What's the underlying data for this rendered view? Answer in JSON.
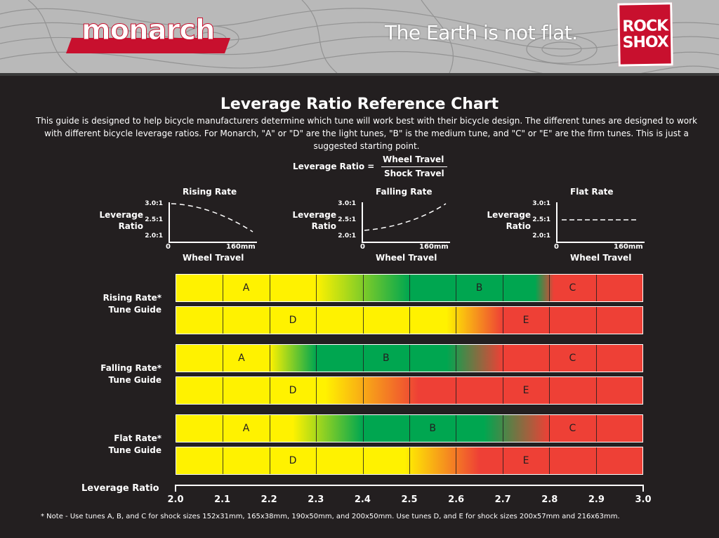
{
  "header": {
    "brand": "monarch",
    "tagline": "The Earth is not flat.",
    "logo_line1": "ROCK",
    "logo_line2": "SHOX",
    "colors": {
      "header_bg": "#b9b9b9",
      "brand_red": "#c8102e"
    }
  },
  "title": "Leverage Ratio Reference Chart",
  "intro": "This guide is designed to help bicycle manufacturers determine which tune will work best with their bicycle design. The different tunes are designed to work with different bicycle leverage ratios. For Monarch, \"A\" or \"D\" are the light tunes, \"B\" is the medium tune, and \"C\" or \"E\" are the firm tunes. This is just a suggested starting point.",
  "formula": {
    "lhs": "Leverage Ratio =",
    "numerator": "Wheel Travel",
    "denominator": "Shock Travel"
  },
  "mini_charts": [
    {
      "title": "Rising Rate",
      "ylabel_line1": "Leverage",
      "ylabel_line2": "Ratio",
      "yticks": [
        "3.0:1",
        "2.5:1",
        "2.0:1"
      ],
      "x_start": "0",
      "x_end": "160mm",
      "xlabel": "Wheel Travel",
      "shape": "rising"
    },
    {
      "title": "Falling Rate",
      "ylabel_line1": "Leverage",
      "ylabel_line2": "Ratio",
      "yticks": [
        "3.0:1",
        "2.5:1",
        "2.0:1"
      ],
      "x_start": "0",
      "x_end": "160mm",
      "xlabel": "Wheel Travel",
      "shape": "falling"
    },
    {
      "title": "Flat Rate",
      "ylabel_line1": "Leverage",
      "ylabel_line2": "Ratio",
      "yticks": [
        "3.0:1",
        "2.5:1",
        "2.0:1"
      ],
      "x_start": "0",
      "x_end": "160mm",
      "xlabel": "Wheel Travel",
      "shape": "flat"
    }
  ],
  "chart_data": {
    "type": "bar",
    "title": "Leverage Ratio Reference Chart",
    "xlabel": "Leverage Ratio",
    "xlim": [
      2.0,
      3.0
    ],
    "xticks": [
      "2.0",
      "2.1",
      "2.2",
      "2.3",
      "2.4",
      "2.5",
      "2.6",
      "2.7",
      "2.8",
      "2.9",
      "3.0"
    ],
    "colors": {
      "light": "#fff200",
      "medium": "#00a650",
      "firm": "#ee4036"
    },
    "groups": [
      {
        "label_line1": "Rising Rate*",
        "label_line2": "Tune Guide",
        "rows": [
          {
            "stops": [
              {
                "x": 2.0,
                "c": "light"
              },
              {
                "x": 2.3,
                "c": "light"
              },
              {
                "x": 2.5,
                "c": "medium"
              },
              {
                "x": 2.77,
                "c": "medium"
              },
              {
                "x": 2.81,
                "c": "firm"
              },
              {
                "x": 3.0,
                "c": "firm"
              }
            ],
            "labels": [
              {
                "x": 2.15,
                "text": "A"
              },
              {
                "x": 2.65,
                "text": "B"
              },
              {
                "x": 2.85,
                "text": "C"
              }
            ]
          },
          {
            "stops": [
              {
                "x": 2.0,
                "c": "light"
              },
              {
                "x": 2.58,
                "c": "light"
              },
              {
                "x": 2.7,
                "c": "firm"
              },
              {
                "x": 3.0,
                "c": "firm"
              }
            ],
            "labels": [
              {
                "x": 2.25,
                "text": "D"
              },
              {
                "x": 2.75,
                "text": "E"
              }
            ]
          }
        ]
      },
      {
        "label_line1": "Falling Rate*",
        "label_line2": "Tune Guide",
        "rows": [
          {
            "stops": [
              {
                "x": 2.0,
                "c": "light"
              },
              {
                "x": 2.2,
                "c": "light"
              },
              {
                "x": 2.3,
                "c": "medium"
              },
              {
                "x": 2.58,
                "c": "medium"
              },
              {
                "x": 2.7,
                "c": "firm"
              },
              {
                "x": 3.0,
                "c": "firm"
              }
            ],
            "labels": [
              {
                "x": 2.14,
                "text": "A"
              },
              {
                "x": 2.45,
                "text": "B"
              },
              {
                "x": 2.85,
                "text": "C"
              }
            ]
          },
          {
            "stops": [
              {
                "x": 2.0,
                "c": "light"
              },
              {
                "x": 2.32,
                "c": "light"
              },
              {
                "x": 2.52,
                "c": "firm"
              },
              {
                "x": 3.0,
                "c": "firm"
              }
            ],
            "labels": [
              {
                "x": 2.25,
                "text": "D"
              },
              {
                "x": 2.75,
                "text": "E"
              }
            ]
          }
        ]
      },
      {
        "label_line1": "Flat Rate*",
        "label_line2": "Tune Guide",
        "rows": [
          {
            "stops": [
              {
                "x": 2.0,
                "c": "light"
              },
              {
                "x": 2.25,
                "c": "light"
              },
              {
                "x": 2.4,
                "c": "medium"
              },
              {
                "x": 2.66,
                "c": "medium"
              },
              {
                "x": 2.8,
                "c": "firm"
              },
              {
                "x": 3.0,
                "c": "firm"
              }
            ],
            "labels": [
              {
                "x": 2.15,
                "text": "A"
              },
              {
                "x": 2.55,
                "text": "B"
              },
              {
                "x": 2.85,
                "text": "C"
              }
            ]
          },
          {
            "stops": [
              {
                "x": 2.0,
                "c": "light"
              },
              {
                "x": 2.49,
                "c": "light"
              },
              {
                "x": 2.65,
                "c": "firm"
              },
              {
                "x": 3.0,
                "c": "firm"
              }
            ],
            "labels": [
              {
                "x": 2.25,
                "text": "D"
              },
              {
                "x": 2.75,
                "text": "E"
              }
            ]
          }
        ]
      }
    ]
  },
  "note": "* Note - Use tunes A, B, and C for shock sizes 152x31mm, 165x38mm, 190x50mm, and 200x50mm.  Use tunes D, and E for shock sizes 200x57mm and 216x63mm."
}
